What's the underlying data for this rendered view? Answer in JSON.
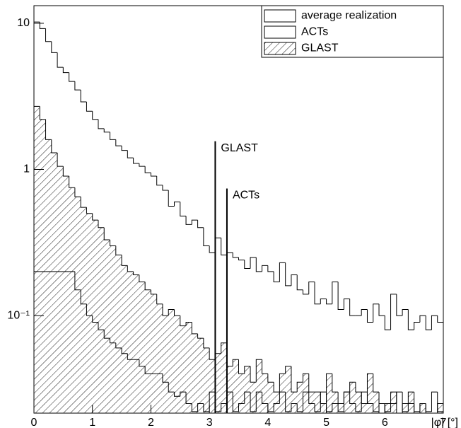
{
  "chart_data": {
    "type": "histogram",
    "x_label": "|φ| [°]",
    "log_y": true,
    "grid": false,
    "legend": "upper right",
    "bins": [
      0,
      0.1,
      0.2,
      0.3,
      0.4,
      0.5,
      0.6,
      0.7,
      0.8,
      0.9,
      1,
      1.1,
      1.2,
      1.3,
      1.4,
      1.5,
      1.6,
      1.7,
      1.8,
      1.9,
      2,
      2.1,
      2.2,
      2.3,
      2.4,
      2.5,
      2.6,
      2.7,
      2.8,
      2.9,
      3,
      3.1,
      3.2,
      3.3,
      3.4,
      3.5,
      3.6,
      3.7,
      3.8,
      3.9,
      4,
      4.1,
      4.2,
      4.3,
      4.4,
      4.5,
      4.6,
      4.7,
      4.8,
      4.9,
      5,
      5.1,
      5.2,
      5.3,
      5.4,
      5.5,
      5.6,
      5.7,
      5.8,
      5.9,
      6,
      6.1,
      6.2,
      6.3,
      6.4,
      6.5,
      6.6,
      6.7,
      6.8,
      6.9,
      7
    ],
    "series": [
      {
        "name": "average realization",
        "color": "#000000",
        "hatched": false,
        "values": [
          10.2,
          9.2,
          7.5,
          6.3,
          5.0,
          4.6,
          4.0,
          3.5,
          2.9,
          2.5,
          2.2,
          1.9,
          1.8,
          1.6,
          1.45,
          1.35,
          1.2,
          1.1,
          1.05,
          0.95,
          0.9,
          0.78,
          0.72,
          0.56,
          0.6,
          0.48,
          0.42,
          0.45,
          0.4,
          0.3,
          0.27,
          0.34,
          0.26,
          0.27,
          0.25,
          0.24,
          0.21,
          0.25,
          0.2,
          0.22,
          0.2,
          0.17,
          0.23,
          0.16,
          0.19,
          0.15,
          0.14,
          0.17,
          0.12,
          0.13,
          0.12,
          0.17,
          0.11,
          0.13,
          0.1,
          0.1,
          0.11,
          0.09,
          0.12,
          0.1,
          0.08,
          0.14,
          0.1,
          0.11,
          0.08,
          0.09,
          0.1,
          0.08,
          0.1,
          0.09
        ]
      },
      {
        "name": "ACTs",
        "color": "#000000",
        "hatched": false,
        "values": [
          0.2,
          0.2,
          0.2,
          0.2,
          0.2,
          0.2,
          0.2,
          0.15,
          0.12,
          0.1,
          0.09,
          0.08,
          0.07,
          0.065,
          0.06,
          0.055,
          0.05,
          0.05,
          0.045,
          0.04,
          0.04,
          0.04,
          0.035,
          0.03,
          0.028,
          0.03,
          0.025,
          0.022,
          0.025,
          0.022,
          0.03,
          0.022,
          0.025,
          0.03,
          0.022,
          0.025,
          0.03,
          0.022,
          0.03,
          0.025,
          0.022,
          0.025,
          0.03,
          0.022,
          0.025,
          0.022,
          0.03,
          0.025,
          0.022,
          0.03,
          0.022,
          0.025,
          0.022,
          0.03,
          0.025,
          0.022,
          0.03,
          0.025,
          0.022,
          0.025,
          0.022,
          0.025,
          0.03,
          0.022,
          0.025,
          0.022,
          0.025,
          0.022,
          0.03,
          0.022
        ]
      },
      {
        "name": "GLAST",
        "color": "#000000",
        "hatched": true,
        "values": [
          2.7,
          2.2,
          1.6,
          1.3,
          1.05,
          0.9,
          0.75,
          0.65,
          0.55,
          0.5,
          0.45,
          0.4,
          0.33,
          0.3,
          0.26,
          0.22,
          0.2,
          0.19,
          0.17,
          0.15,
          0.14,
          0.12,
          0.1,
          0.11,
          0.1,
          0.085,
          0.09,
          0.075,
          0.07,
          0.06,
          0.05,
          0.055,
          0.065,
          0.045,
          0.05,
          0.04,
          0.045,
          0.035,
          0.05,
          0.04,
          0.035,
          0.03,
          0.04,
          0.045,
          0.03,
          0.035,
          0.04,
          0.03,
          0.03,
          0.025,
          0.04,
          0.03,
          0.025,
          0.03,
          0.035,
          0.03,
          0.025,
          0.04,
          0.03,
          0.02,
          0.025,
          0.03,
          0.02,
          0.025,
          0.03,
          0.02,
          0.025,
          0.02,
          0.02,
          0.025
        ]
      }
    ],
    "annotations": [
      {
        "label": "GLAST",
        "x": 3.1,
        "ymax": 1.56
      },
      {
        "label": "ACTs",
        "x": 3.3,
        "ymax": 0.74
      }
    ],
    "xlim": [
      0,
      7
    ],
    "xticks": [
      0,
      1,
      2,
      3,
      4,
      5,
      6,
      7
    ],
    "ylim": [
      0.0215,
      13.2
    ],
    "yticks": [
      {
        "value": 0.1,
        "label": "10⁻¹"
      },
      1,
      10
    ]
  }
}
